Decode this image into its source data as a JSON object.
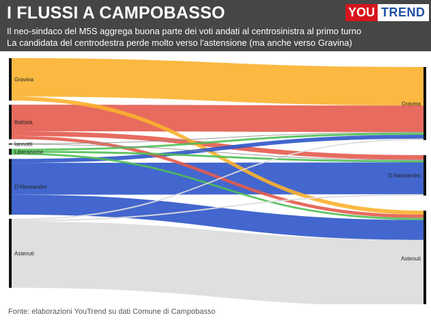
{
  "header": {
    "title": "I FLUSSI A CAMPOBASSO",
    "subtitle_line1": "Il neo-sindaco del M5S aggrega buona parte dei voti andati al centrosinistra al primo turno",
    "subtitle_line2": "La candidata del centrodestra perde molto verso l'astensione (ma anche verso Gravina)"
  },
  "logo": {
    "part1": "YOU",
    "part2": "TREND"
  },
  "footer": {
    "source": "Fonte: elaborazioni YouTrend su dati Comune di Campobasso"
  },
  "colors": {
    "gravina": "#fbb12e",
    "battista": "#e45b4e",
    "iannotti": "#8f8f8f",
    "liberanome": "#4fbf55",
    "dalessandro": "#2f57c9",
    "astenuti": "#dddddd"
  },
  "chart_data": {
    "type": "sankey",
    "left_nodes": [
      "Gravina",
      "Battista",
      "Iannotti",
      "Liberanome",
      "D'Alessandro",
      "Astenuti"
    ],
    "right_nodes": [
      "Gravina",
      "D'Alessandro",
      "Astenuti"
    ],
    "flows": [
      {
        "from": "Gravina",
        "to": "Gravina",
        "value": 58
      },
      {
        "from": "Gravina",
        "to": "Astenuti",
        "value": 6
      },
      {
        "from": "Battista",
        "to": "Gravina",
        "value": 40
      },
      {
        "from": "Battista",
        "to": "D'Alessandro",
        "value": 7
      },
      {
        "from": "Battista",
        "to": "Astenuti",
        "value": 5
      },
      {
        "from": "Iannotti",
        "to": "Gravina",
        "value": 1
      },
      {
        "from": "Iannotti",
        "to": "D'Alessandro",
        "value": 1
      },
      {
        "from": "Liberanome",
        "to": "Gravina",
        "value": 3
      },
      {
        "from": "Liberanome",
        "to": "D'Alessandro",
        "value": 3
      },
      {
        "from": "Liberanome",
        "to": "Astenuti",
        "value": 3
      },
      {
        "from": "D'Alessandro",
        "to": "Gravina",
        "value": 6
      },
      {
        "from": "D'Alessandro",
        "to": "D'Alessandro",
        "value": 48
      },
      {
        "from": "D'Alessandro",
        "to": "Astenuti",
        "value": 30
      },
      {
        "from": "Astenuti",
        "to": "Gravina",
        "value": 2
      },
      {
        "from": "Astenuti",
        "to": "D'Alessandro",
        "value": 2
      },
      {
        "from": "Astenuti",
        "to": "Astenuti",
        "value": 100
      }
    ]
  }
}
